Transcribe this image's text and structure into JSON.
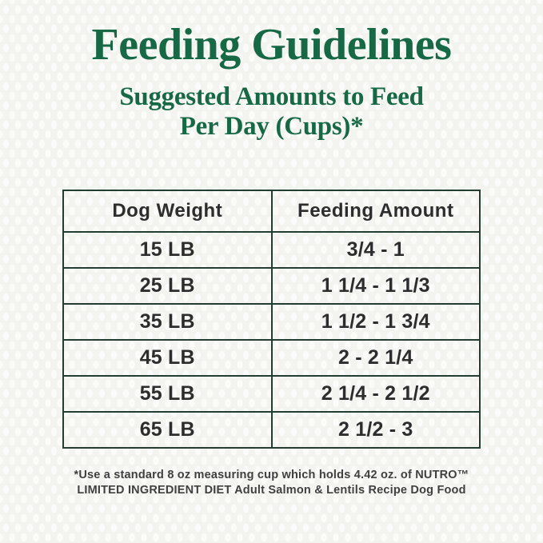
{
  "page": {
    "title": "Feeding Guidelines",
    "subtitle_line1": "Suggested Amounts to Feed",
    "subtitle_line2": "Per Day (Cups)*"
  },
  "table": {
    "headers": [
      "Dog Weight",
      "Feeding Amount"
    ],
    "rows": [
      {
        "weight": "15 LB",
        "amount": "3/4 - 1"
      },
      {
        "weight": "25 LB",
        "amount": "1 1/4 - 1 1/3"
      },
      {
        "weight": "35 LB",
        "amount": "1 1/2 - 1 3/4"
      },
      {
        "weight": "45 LB",
        "amount": "2 - 2 1/4"
      },
      {
        "weight": "55 LB",
        "amount": "2 1/4 - 2 1/2"
      },
      {
        "weight": "65 LB",
        "amount": "2 1/2 - 3"
      }
    ]
  },
  "footnote": {
    "line1": "*Use a standard 8 oz measuring cup which holds 4.42 oz. of NUTRO™",
    "line2": "LIMITED INGREDIENT DIET Adult Salmon & Lentils Recipe Dog Food"
  },
  "colors": {
    "title_green": "#176946",
    "table_border": "#233d32",
    "table_text": "#2d2d2d",
    "footnote_text": "#404040",
    "background": "#f3f3f0"
  }
}
